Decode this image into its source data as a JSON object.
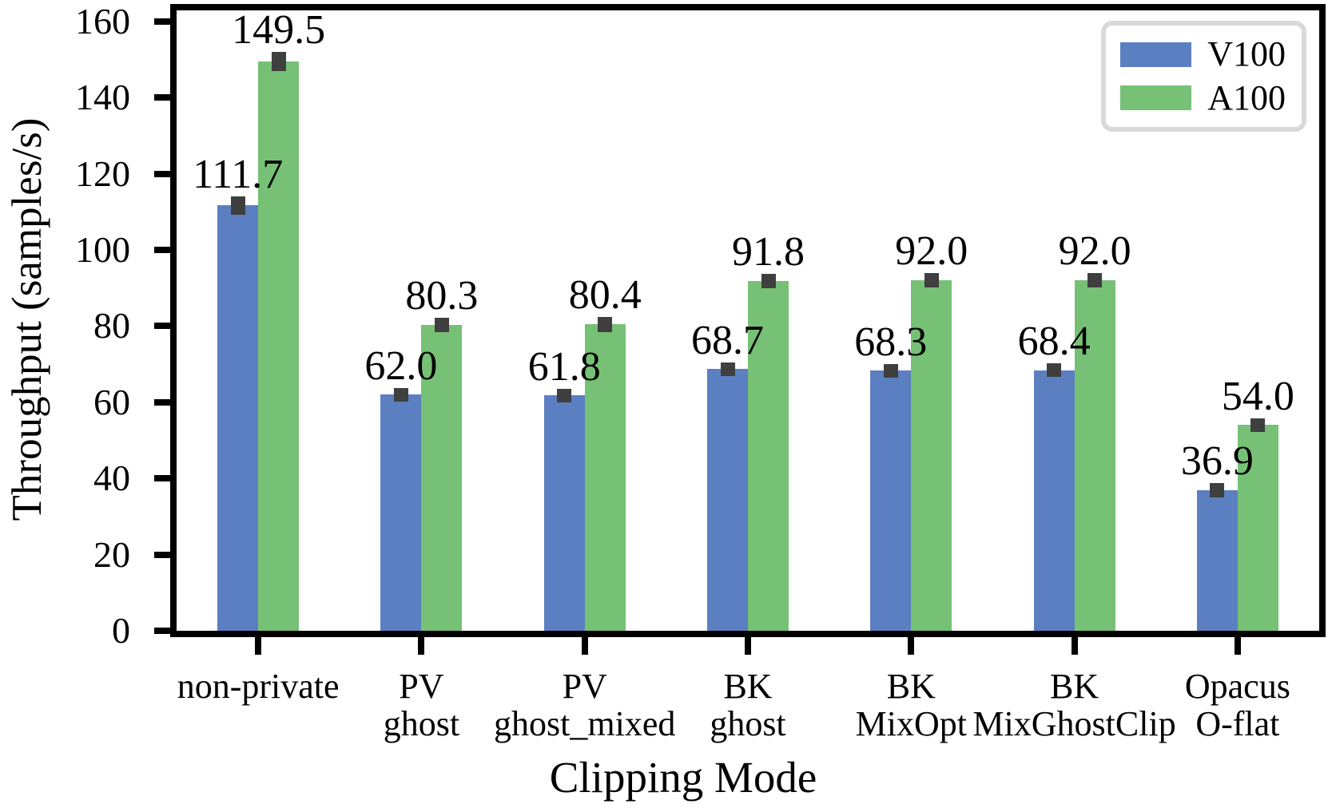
{
  "chart_data": {
    "type": "bar",
    "title": "",
    "xlabel": "Clipping Mode",
    "ylabel": "Throughput (samples/s)",
    "categories": [
      "non-private",
      "PV\nghost",
      "PV\nghost_mixed",
      "BK\nghost",
      "BK\nMixOpt",
      "BK\nMixGhostClip",
      "Opacus\nO-flat"
    ],
    "series": [
      {
        "name": "V100",
        "color": "#5B7FC0",
        "values": [
          111.7,
          62.0,
          61.8,
          68.7,
          68.3,
          68.4,
          36.9
        ],
        "errors": [
          2.4,
          1.8,
          1.8,
          1.8,
          1.8,
          1.8,
          1.8
        ]
      },
      {
        "name": "A100",
        "color": "#76C175",
        "values": [
          149.5,
          80.3,
          80.4,
          91.8,
          92.0,
          92.0,
          54.0
        ],
        "errors": [
          2.5,
          1.9,
          1.9,
          1.9,
          1.9,
          1.9,
          1.8
        ]
      }
    ],
    "value_labels": {
      "V100": [
        "111.7",
        "62.0",
        "61.8",
        "68.7",
        "68.3",
        "68.4",
        "36.9"
      ],
      "A100": [
        "149.5",
        "80.3",
        "80.4",
        "91.8",
        "92.0",
        "92.0",
        "54.0"
      ]
    },
    "yticks": [
      0,
      20,
      40,
      60,
      80,
      100,
      120,
      140,
      160
    ],
    "ylim": [
      0,
      163
    ],
    "grid": false,
    "legend_position": "upper right",
    "error_bar_color": "#3F3F3F",
    "axis_color": "#000000",
    "legend_border_color": "#D9D9D9"
  }
}
